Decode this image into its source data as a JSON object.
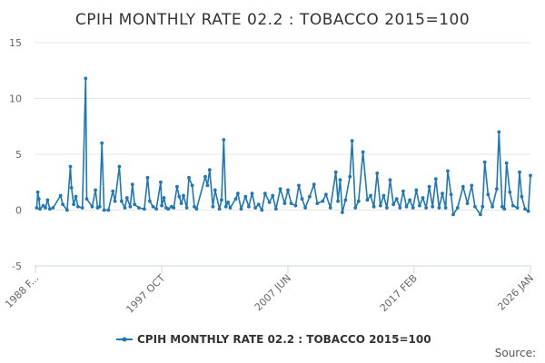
{
  "chart_data": {
    "type": "line",
    "title": "CPIH MONTHLY RATE 02.2 : TOBACCO 2015=100",
    "xlabel": "",
    "ylabel": "",
    "ylim": [
      -5,
      15
    ],
    "yticks": [
      -5,
      0,
      5,
      10,
      15
    ],
    "xlim": [
      "1988 JAN",
      "2026 JAN"
    ],
    "xticks": [
      "1988 F...",
      "1997 OCT",
      "2007 JUN",
      "2017 FEB",
      "2026 JAN"
    ],
    "grid": "horizontal",
    "legend": "bottom-center",
    "series_color": "#1f77b4",
    "series": [
      {
        "name": "CPIH MONTHLY RATE 02.2 : TOBACCO 2015=100",
        "points": [
          [
            "1988-03",
            0.2
          ],
          [
            "1988-04",
            1.6
          ],
          [
            "1988-05",
            1.0
          ],
          [
            "1988-06",
            0.1
          ],
          [
            "1988-09",
            0.4
          ],
          [
            "1988-11",
            0.2
          ],
          [
            "1989-01",
            0.9
          ],
          [
            "1989-03",
            0.1
          ],
          [
            "1989-06",
            0.2
          ],
          [
            "1990-01",
            1.3
          ],
          [
            "1990-03",
            0.5
          ],
          [
            "1990-07",
            0.0
          ],
          [
            "1990-10",
            3.9
          ],
          [
            "1990-11",
            2.0
          ],
          [
            "1991-01",
            0.5
          ],
          [
            "1991-03",
            1.2
          ],
          [
            "1991-05",
            0.3
          ],
          [
            "1991-09",
            0.2
          ],
          [
            "1991-12",
            11.8
          ],
          [
            "1992-01",
            1.0
          ],
          [
            "1992-06",
            0.3
          ],
          [
            "1992-09",
            1.8
          ],
          [
            "1992-11",
            0.2
          ],
          [
            "1993-01",
            0.3
          ],
          [
            "1993-03",
            6.0
          ],
          [
            "1993-05",
            0.0
          ],
          [
            "1993-09",
            0.0
          ],
          [
            "1994-01",
            1.7
          ],
          [
            "1994-03",
            0.8
          ],
          [
            "1994-07",
            3.9
          ],
          [
            "1994-09",
            0.8
          ],
          [
            "1994-12",
            0.2
          ],
          [
            "1995-02",
            1.1
          ],
          [
            "1995-05",
            0.3
          ],
          [
            "1995-07",
            2.3
          ],
          [
            "1995-09",
            0.5
          ],
          [
            "1996-01",
            0.2
          ],
          [
            "1996-06",
            0.1
          ],
          [
            "1996-09",
            2.9
          ],
          [
            "1996-11",
            0.8
          ],
          [
            "1997-02",
            0.3
          ],
          [
            "1997-05",
            0.1
          ],
          [
            "1997-09",
            2.5
          ],
          [
            "1997-10",
            0.4
          ],
          [
            "1997-12",
            1.1
          ],
          [
            "1998-02",
            0.2
          ],
          [
            "1998-04",
            0.1
          ],
          [
            "1998-07",
            0.3
          ],
          [
            "1998-09",
            0.2
          ],
          [
            "1998-12",
            2.1
          ],
          [
            "1999-02",
            1.2
          ],
          [
            "1999-04",
            0.6
          ],
          [
            "1999-06",
            1.3
          ],
          [
            "1999-09",
            0.2
          ],
          [
            "1999-11",
            2.9
          ],
          [
            "2000-02",
            2.2
          ],
          [
            "2000-04",
            0.3
          ],
          [
            "2000-06",
            0.1
          ],
          [
            "2001-02",
            3.0
          ],
          [
            "2001-04",
            2.2
          ],
          [
            "2001-06",
            3.6
          ],
          [
            "2001-09",
            0.3
          ],
          [
            "2001-11",
            1.8
          ],
          [
            "2002-03",
            0.1
          ],
          [
            "2002-05",
            0.9
          ],
          [
            "2002-07",
            6.3
          ],
          [
            "2002-09",
            0.3
          ],
          [
            "2002-11",
            0.7
          ],
          [
            "2003-01",
            0.2
          ],
          [
            "2003-06",
            1.0
          ],
          [
            "2003-08",
            1.5
          ],
          [
            "2003-11",
            0.1
          ],
          [
            "2004-03",
            1.2
          ],
          [
            "2004-06",
            0.3
          ],
          [
            "2004-09",
            1.5
          ],
          [
            "2004-12",
            0.2
          ],
          [
            "2005-03",
            0.5
          ],
          [
            "2005-06",
            0.0
          ],
          [
            "2005-09",
            1.5
          ],
          [
            "2006-01",
            0.7
          ],
          [
            "2006-04",
            1.3
          ],
          [
            "2006-07",
            0.1
          ],
          [
            "2006-11",
            1.9
          ],
          [
            "2007-03",
            0.6
          ],
          [
            "2007-06",
            1.8
          ],
          [
            "2007-09",
            0.6
          ],
          [
            "2008-01",
            0.4
          ],
          [
            "2008-04",
            2.2
          ],
          [
            "2008-07",
            1.0
          ],
          [
            "2008-10",
            0.2
          ],
          [
            "2009-02",
            1.2
          ],
          [
            "2009-06",
            2.3
          ],
          [
            "2009-09",
            0.6
          ],
          [
            "2010-02",
            0.8
          ],
          [
            "2010-05",
            1.4
          ],
          [
            "2010-09",
            0.2
          ],
          [
            "2011-02",
            3.4
          ],
          [
            "2011-04",
            0.8
          ],
          [
            "2011-06",
            2.7
          ],
          [
            "2011-08",
            -0.2
          ],
          [
            "2011-11",
            0.9
          ],
          [
            "2012-03",
            3.0
          ],
          [
            "2012-05",
            6.2
          ],
          [
            "2012-08",
            0.2
          ],
          [
            "2012-11",
            0.8
          ],
          [
            "2013-03",
            5.2
          ],
          [
            "2013-07",
            0.9
          ],
          [
            "2013-10",
            1.3
          ],
          [
            "2014-01",
            0.3
          ],
          [
            "2014-04",
            3.3
          ],
          [
            "2014-07",
            0.4
          ],
          [
            "2014-10",
            1.3
          ],
          [
            "2015-01",
            0.2
          ],
          [
            "2015-04",
            2.7
          ],
          [
            "2015-07",
            0.5
          ],
          [
            "2015-10",
            1.0
          ],
          [
            "2016-01",
            0.2
          ],
          [
            "2016-04",
            1.7
          ],
          [
            "2016-07",
            0.3
          ],
          [
            "2016-10",
            0.9
          ],
          [
            "2017-01",
            0.2
          ],
          [
            "2017-04",
            1.8
          ],
          [
            "2017-07",
            0.4
          ],
          [
            "2017-10",
            1.1
          ],
          [
            "2018-01",
            0.2
          ],
          [
            "2018-04",
            2.1
          ],
          [
            "2018-07",
            0.3
          ],
          [
            "2018-10",
            2.8
          ],
          [
            "2019-01",
            0.2
          ],
          [
            "2019-04",
            1.5
          ],
          [
            "2019-07",
            0.2
          ],
          [
            "2019-09",
            3.5
          ],
          [
            "2019-12",
            1.4
          ],
          [
            "2020-02",
            -0.4
          ],
          [
            "2020-06",
            0.2
          ],
          [
            "2020-11",
            2.1
          ],
          [
            "2021-03",
            0.6
          ],
          [
            "2021-07",
            2.2
          ],
          [
            "2021-10",
            0.3
          ],
          [
            "2022-03",
            -0.4
          ],
          [
            "2022-05",
            0.3
          ],
          [
            "2022-07",
            4.3
          ],
          [
            "2022-10",
            1.4
          ],
          [
            "2023-02",
            0.3
          ],
          [
            "2023-06",
            1.9
          ],
          [
            "2023-08",
            7.0
          ],
          [
            "2023-11",
            0.3
          ],
          [
            "2024-01",
            0.1
          ],
          [
            "2024-03",
            4.2
          ],
          [
            "2024-06",
            1.6
          ],
          [
            "2024-09",
            0.4
          ],
          [
            "2025-01",
            0.2
          ],
          [
            "2025-03",
            3.4
          ],
          [
            "2025-05",
            1.2
          ],
          [
            "2025-08",
            0.1
          ],
          [
            "2025-11",
            -0.1
          ],
          [
            "2026-01",
            3.1
          ]
        ]
      }
    ],
    "source": "Source:"
  }
}
